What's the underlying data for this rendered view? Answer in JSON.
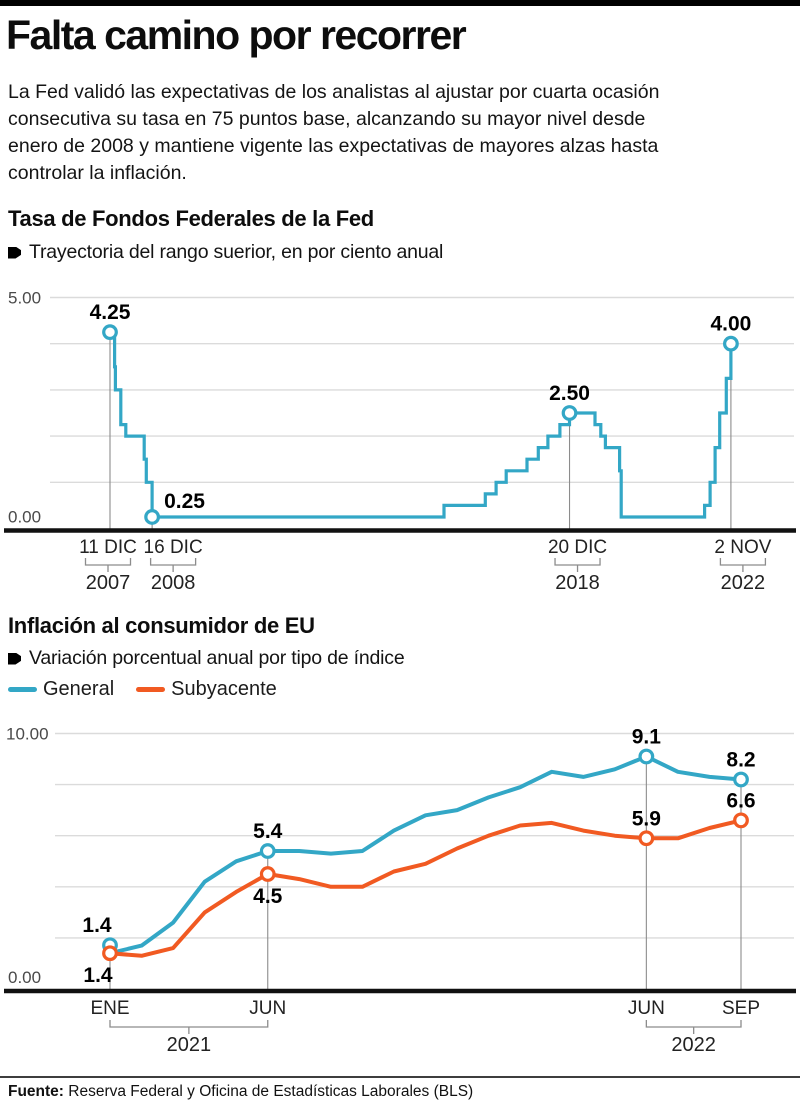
{
  "page": {
    "title": "Falta camino por recorrer",
    "intro_lines": [
      "La Fed validó las expectativas de los analistas al ajustar por cuarta ocasión",
      "consecutiva su tasa en 75 puntos base, alcanzando su mayor nivel desde",
      "enero de 2008 y mantiene vigente las expectativas de mayores alzas hasta",
      "controlar la inflación."
    ],
    "source": {
      "label": "Fuente:",
      "text": "Reserva Federal y Oficina de Estadísticas Laborales (BLS)"
    }
  },
  "colors": {
    "general": "#33A7C6",
    "subyacente": "#F15A22",
    "grid": "#DBDBDB",
    "refline": "#8C8C8C",
    "bracket": "#8C8C8C",
    "axis": "#111111",
    "tick_text": "#222222",
    "ylabel_text": "#4A4A4A",
    "datalabel_text": "#000000"
  },
  "fed_section": {
    "title": "Tasa de Fondos Federales de la Fed",
    "subtitle": "Trayectoria del rango suerior, en por ciento anual"
  },
  "inflation_section": {
    "title": "Inflación al consumidor de EU",
    "subtitle": "Variación porcentual anual por tipo de índice",
    "legend": [
      {
        "name": "General"
      },
      {
        "name": "Subyacente"
      }
    ]
  },
  "chart_data": [
    {
      "id": "fed",
      "type": "line",
      "step": true,
      "title": "Tasa de Fondos Federales de la Fed",
      "subtitle": "Trayectoria del rango suerior, en por ciento anual",
      "ylim": [
        0,
        5
      ],
      "grid_values": [
        5,
        4,
        3,
        2,
        1
      ],
      "ymax_label": "5.00",
      "ymin_label": "0.00",
      "x_unit": "decimal_year",
      "series": [
        {
          "name": "Tasa de fondos federales (rango superior)",
          "color_key": "general",
          "points": [
            [
              2007.95,
              4.25
            ],
            [
              2008.06,
              3.5
            ],
            [
              2008.08,
              3.0
            ],
            [
              2008.21,
              2.25
            ],
            [
              2008.33,
              2.0
            ],
            [
              2008.77,
              1.5
            ],
            [
              2008.82,
              1.0
            ],
            [
              2008.96,
              0.25
            ],
            [
              2015.96,
              0.5
            ],
            [
              2016.95,
              0.75
            ],
            [
              2017.21,
              1.0
            ],
            [
              2017.45,
              1.25
            ],
            [
              2017.95,
              1.5
            ],
            [
              2018.22,
              1.75
            ],
            [
              2018.45,
              2.0
            ],
            [
              2018.74,
              2.25
            ],
            [
              2018.97,
              2.5
            ],
            [
              2019.58,
              2.25
            ],
            [
              2019.72,
              2.0
            ],
            [
              2019.83,
              1.75
            ],
            [
              2020.17,
              1.25
            ],
            [
              2020.21,
              0.25
            ],
            [
              2022.21,
              0.5
            ],
            [
              2022.34,
              1.0
            ],
            [
              2022.46,
              1.75
            ],
            [
              2022.57,
              2.5
            ],
            [
              2022.73,
              3.25
            ],
            [
              2022.84,
              4.0
            ]
          ]
        }
      ],
      "annotations": [
        {
          "t": 2007.95,
          "v": 4.25,
          "label": "4.25",
          "pos": "above"
        },
        {
          "t": 2008.96,
          "v": 0.25,
          "label": "0.25",
          "pos": "right"
        },
        {
          "t": 2018.97,
          "v": 2.5,
          "label": "2.50",
          "pos": "above"
        },
        {
          "t": 2022.84,
          "v": 4.0,
          "label": "4.00",
          "pos": "above"
        }
      ],
      "x_axis": [
        {
          "label": "11 DIC",
          "year": "2007",
          "t": 2007.95,
          "v": 4.25
        },
        {
          "label": "16 DIC",
          "year": "2008",
          "t": 2008.96,
          "v": 0.25
        },
        {
          "label": "20 DIC",
          "year": "2018",
          "t": 2018.97,
          "v": 2.5
        },
        {
          "label": "2 NOV",
          "year": "2022",
          "t": 2022.84,
          "v": 4.0
        }
      ]
    },
    {
      "id": "inflation",
      "type": "line",
      "title": "Inflación al consumidor de EU",
      "subtitle": "Variación porcentual anual por tipo de índice",
      "ylim": [
        0,
        10
      ],
      "grid_values": [
        10,
        8,
        6,
        4,
        2
      ],
      "ymax_label": "10.00",
      "ymin_label": "0.00",
      "x_unit": "month",
      "x_start_label": "ENE 2021",
      "x_end_label": "SEP 2022",
      "series": [
        {
          "name": "General",
          "color_key": "general",
          "values": [
            1.4,
            1.7,
            2.6,
            4.2,
            5.0,
            5.4,
            5.4,
            5.3,
            5.4,
            6.2,
            6.8,
            7.0,
            7.5,
            7.9,
            8.5,
            8.3,
            8.6,
            9.1,
            8.5,
            8.3,
            8.2
          ]
        },
        {
          "name": "Subyacente",
          "color_key": "subyacente",
          "values": [
            1.4,
            1.3,
            1.6,
            3.0,
            3.8,
            4.5,
            4.3,
            4.0,
            4.0,
            4.6,
            4.9,
            5.5,
            6.0,
            6.4,
            6.5,
            6.2,
            6.0,
            5.9,
            5.9,
            6.3,
            6.6
          ]
        }
      ],
      "annotations": [
        {
          "series": 0,
          "m": 0,
          "label": "1.4",
          "pos": "above-left",
          "marker_dy": -8
        },
        {
          "series": 1,
          "m": 0,
          "label": "1.4",
          "pos": "below-left"
        },
        {
          "series": 0,
          "m": 5,
          "label": "5.4",
          "pos": "above"
        },
        {
          "series": 1,
          "m": 5,
          "label": "4.5",
          "pos": "below"
        },
        {
          "series": 0,
          "m": 17,
          "label": "9.1",
          "pos": "above"
        },
        {
          "series": 1,
          "m": 17,
          "label": "5.9",
          "pos": "above"
        },
        {
          "series": 0,
          "m": 20,
          "label": "8.2",
          "pos": "above"
        },
        {
          "series": 1,
          "m": 20,
          "label": "6.6",
          "pos": "above"
        }
      ],
      "x_axis": [
        {
          "label": "ENE",
          "m": 0
        },
        {
          "label": "JUN",
          "m": 5
        },
        {
          "label": "JUN",
          "m": 17
        },
        {
          "label": "SEP",
          "m": 20
        }
      ],
      "year_brackets": [
        {
          "year": "2021",
          "from_m": 0,
          "to_m": 5
        },
        {
          "year": "2022",
          "from_m": 17,
          "to_m": 20
        }
      ]
    }
  ]
}
